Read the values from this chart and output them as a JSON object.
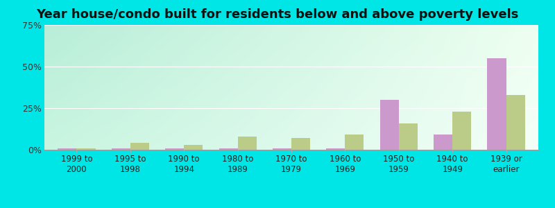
{
  "title": "Year house/condo built for residents below and above poverty levels",
  "categories": [
    "1999 to\n2000",
    "1995 to\n1998",
    "1990 to\n1994",
    "1980 to\n1989",
    "1970 to\n1979",
    "1960 to\n1969",
    "1950 to\n1959",
    "1940 to\n1949",
    "1939 or\nearlier"
  ],
  "below_poverty": [
    0.8,
    0.8,
    0.8,
    0.8,
    0.8,
    0.8,
    30,
    9,
    55
  ],
  "above_poverty": [
    0.8,
    4,
    3,
    8,
    7,
    9,
    16,
    23,
    33
  ],
  "below_color": "#cc99cc",
  "above_color": "#bbcc88",
  "ylim": [
    0,
    75
  ],
  "yticks": [
    0,
    25,
    50,
    75
  ],
  "ytick_labels": [
    "0%",
    "25%",
    "50%",
    "75%"
  ],
  "bg_top_left": "#b8eed8",
  "bg_top_right": "#edfff0",
  "bg_bottom_left": "#c8f5e0",
  "bg_bottom_right": "#f5fff8",
  "outer_background": "#00e5e5",
  "bar_width": 0.35,
  "grid_color": "#e0ede0",
  "title_fontsize": 13,
  "tick_fontsize": 8.5,
  "ytick_fontsize": 9
}
